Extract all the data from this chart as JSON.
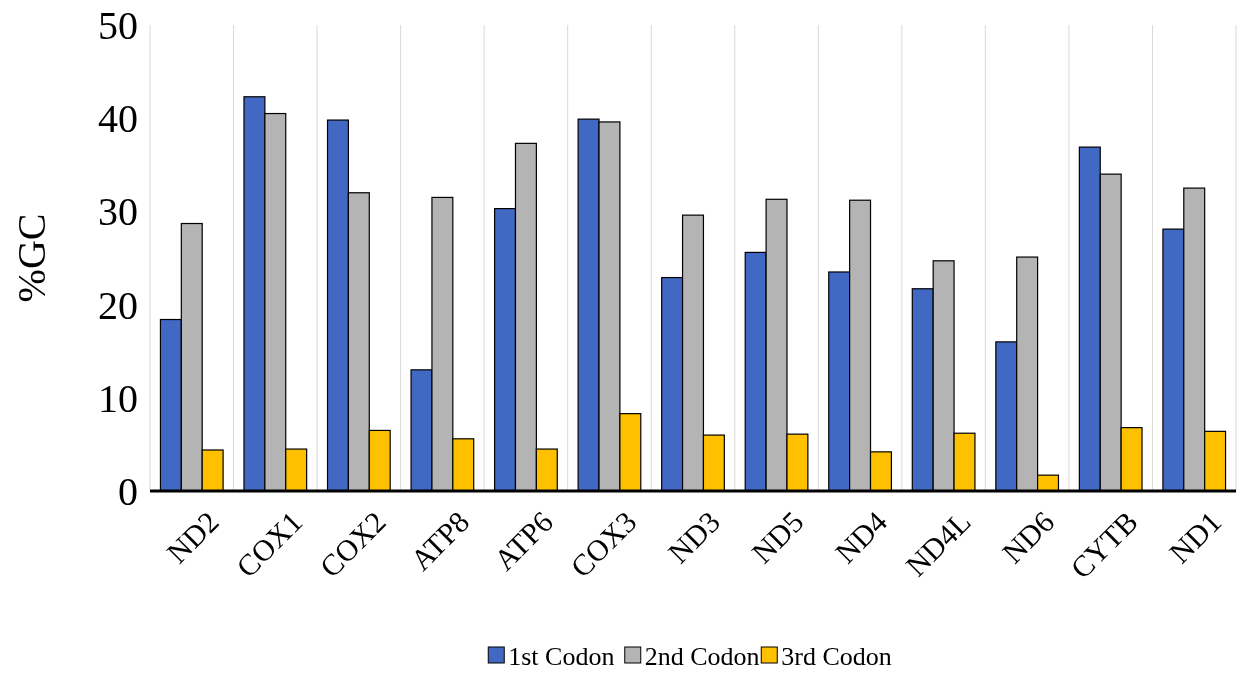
{
  "chart_data": {
    "type": "bar",
    "ylabel": "%GC",
    "categories": [
      "ND2",
      "COX1",
      "COX2",
      "ATP8",
      "ATP6",
      "COX3",
      "ND3",
      "ND5",
      "ND4",
      "ND4L",
      "ND6",
      "CYTB",
      "ND1"
    ],
    "series": [
      {
        "name": "1st Codon",
        "color": "#4169c4",
        "values": [
          18.4,
          42.3,
          39.8,
          13.0,
          30.3,
          39.9,
          22.9,
          25.6,
          23.5,
          21.7,
          16.0,
          36.9,
          28.1
        ]
      },
      {
        "name": "2nd Codon",
        "color": "#b4b4b4",
        "values": [
          28.7,
          40.5,
          32.0,
          31.5,
          37.3,
          39.6,
          29.6,
          31.3,
          31.2,
          24.7,
          25.1,
          34.0,
          32.5
        ]
      },
      {
        "name": "3rd Codon",
        "color": "#ffc000",
        "values": [
          4.4,
          4.5,
          6.5,
          5.6,
          4.5,
          8.3,
          6.0,
          6.1,
          4.2,
          6.2,
          1.7,
          6.8,
          6.4
        ]
      }
    ],
    "ylim": [
      0,
      50
    ],
    "yticks": [
      0,
      10,
      20,
      30,
      40,
      50
    ],
    "grid": "x",
    "legend": "bottom"
  }
}
